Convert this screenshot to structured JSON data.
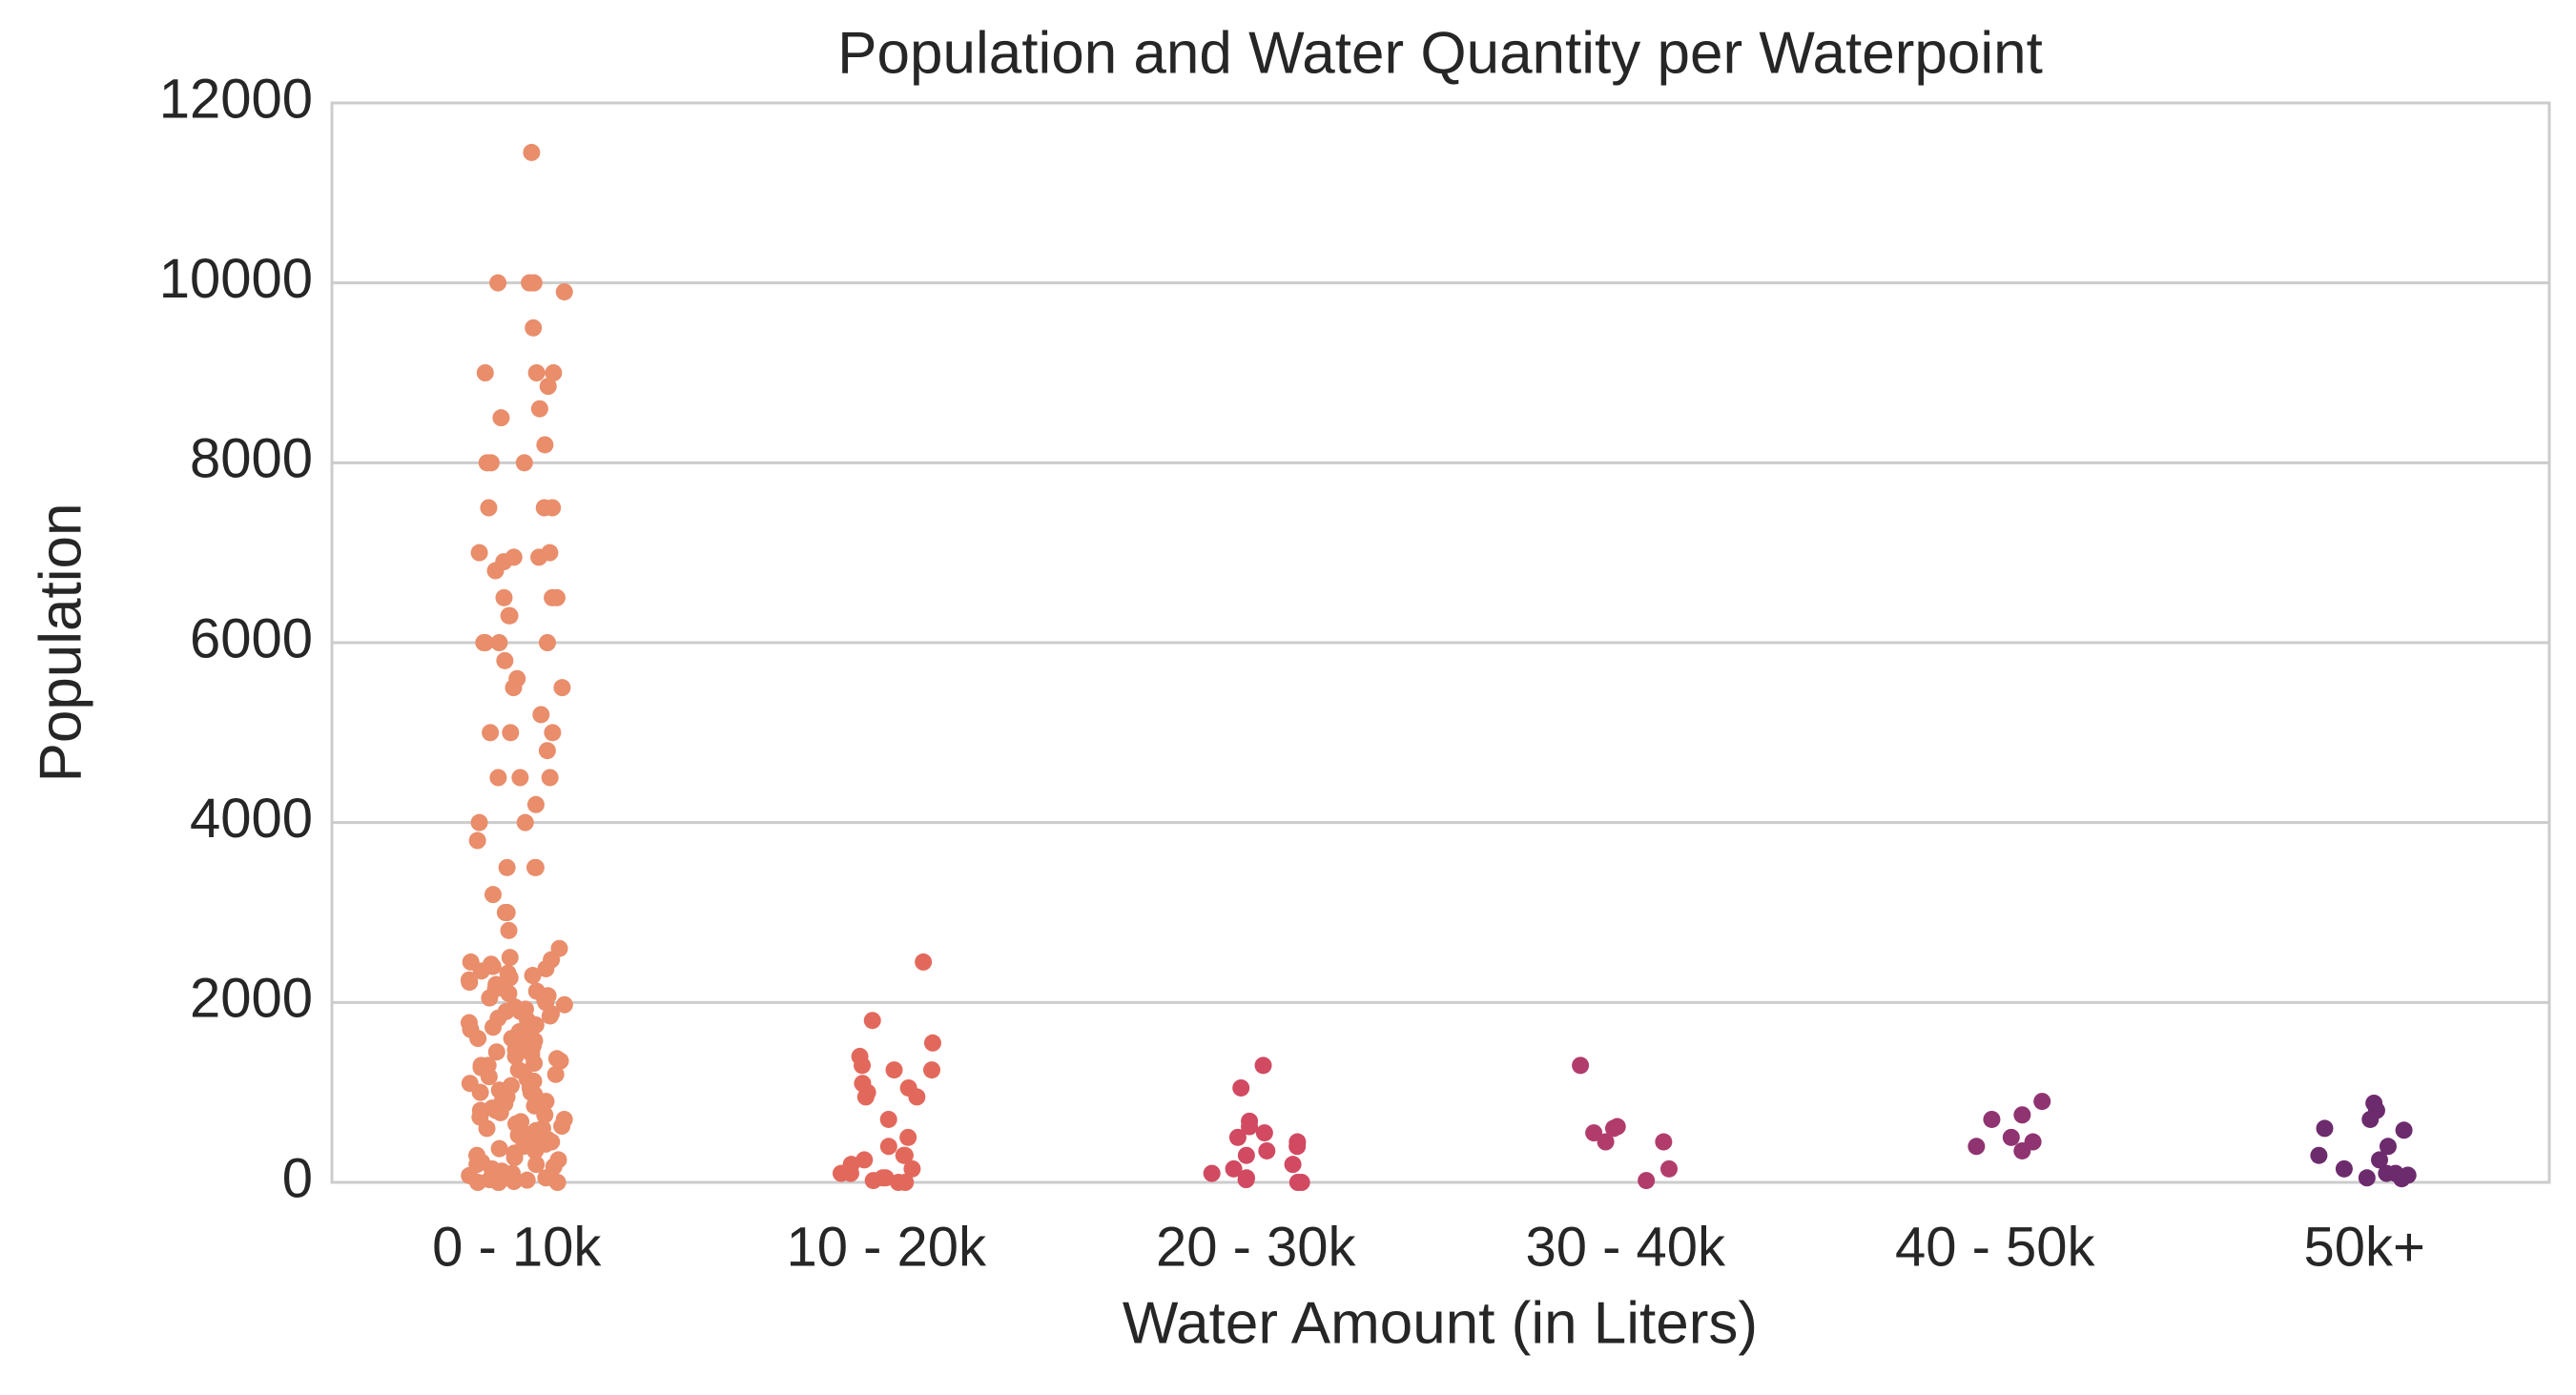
{
  "chart_data": {
    "type": "strip",
    "title": "Population and Water Quantity per Waterpoint",
    "x_label": "Water Amount (in Liters)",
    "y_label": "Population",
    "categories": [
      "0 - 10k",
      "10 - 20k",
      "20 - 30k",
      "30 - 40k",
      "40 - 50k",
      "50k+"
    ],
    "colors": [
      "#e98d6b",
      "#e3685c",
      "#d14a61",
      "#b13c6c",
      "#8f3371",
      "#6c2b6d"
    ],
    "values": [
      [
        11450,
        10000,
        10000,
        9900,
        10000,
        9500,
        9000,
        9000,
        9000,
        8850,
        8600,
        8500,
        8200,
        8000,
        8000,
        8000,
        7500,
        7500,
        7500,
        7000,
        7000,
        6950,
        6950,
        6900,
        6800,
        6500,
        6500,
        6500,
        6300,
        6300,
        6000,
        6000,
        6000,
        6000,
        5800,
        5600,
        5500,
        5500,
        5200,
        5000,
        5000,
        5000,
        4800,
        4500,
        4500,
        4500,
        4200,
        4000,
        4000,
        3800,
        3500,
        3500,
        3500,
        3200,
        3000,
        3000,
        2800,
        2600,
        2500,
        2450,
        2400,
        2350,
        2300,
        2250,
        2200,
        2150,
        2100,
        2050,
        2000,
        1950,
        1900,
        1850,
        1800,
        1750,
        1700,
        1650,
        1600,
        1550,
        1500,
        1450,
        1400,
        1350,
        1300,
        1250,
        1200,
        1150,
        1100,
        1050,
        1000,
        950,
        900,
        850,
        800,
        750,
        700,
        650,
        600,
        550,
        500,
        450,
        400,
        350,
        300,
        250,
        200,
        150,
        100,
        50,
        0,
        2475,
        2425,
        2375,
        2325,
        2275,
        2225,
        2175,
        2125,
        2075,
        2025,
        1975,
        1925,
        1875,
        1825,
        1775,
        1725,
        1675,
        1625,
        1575,
        1525,
        1475,
        1425,
        1375,
        1325,
        1275,
        1225,
        1175,
        1125,
        1075,
        1025,
        975,
        925,
        875,
        825,
        775,
        725,
        675,
        625,
        575,
        525,
        475,
        425,
        375,
        325,
        275,
        225,
        175,
        125,
        75,
        25,
        1900,
        1600,
        1300,
        1000,
        800,
        600,
        400,
        200,
        100,
        30,
        10,
        0,
        0,
        0
      ],
      [
        2450,
        1800,
        1550,
        1400,
        1300,
        1250,
        1250,
        1100,
        1050,
        1000,
        950,
        950,
        700,
        500,
        400,
        300,
        300,
        250,
        200,
        150,
        100,
        100,
        50,
        50,
        20,
        0,
        0
      ],
      [
        1300,
        1050,
        680,
        620,
        550,
        500,
        450,
        400,
        350,
        300,
        200,
        150,
        100,
        50,
        30,
        0,
        0
      ],
      [
        1300,
        620,
        600,
        550,
        450,
        450,
        150,
        20
      ],
      [
        900,
        750,
        700,
        500,
        450,
        400,
        350
      ],
      [
        880,
        800,
        700,
        600,
        580,
        400,
        300,
        250,
        150,
        100,
        100,
        80,
        50,
        40
      ]
    ],
    "ylim": [
      0,
      12000
    ],
    "yticks": [
      0,
      2000,
      4000,
      6000,
      8000,
      10000,
      12000
    ],
    "grid": true
  }
}
